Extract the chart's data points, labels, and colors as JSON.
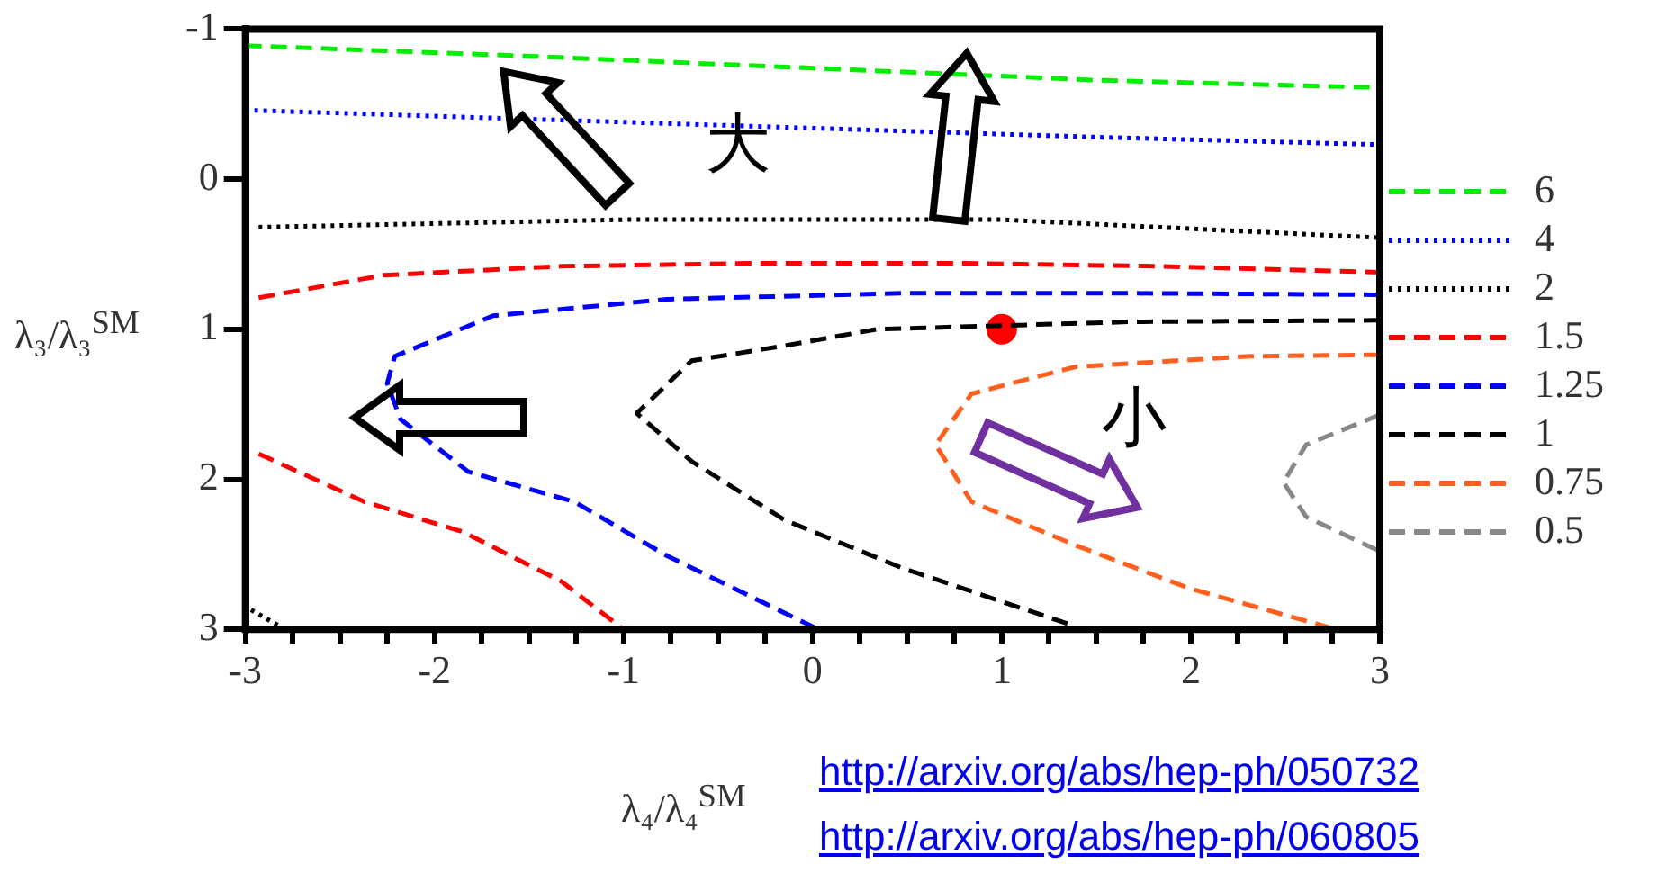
{
  "chart_data": {
    "type": "line",
    "xlabel": "λ₄/λ₄$^{SM}$",
    "ylabel": "λ₃/λ₃$^{SM}$",
    "xlim": [
      -3,
      3
    ],
    "ylim": [
      3,
      -1
    ],
    "xticks": [
      -3,
      {
        "value": -2.75,
        "label": null
      },
      {
        "value": -2.5,
        "label": null
      },
      {
        "value": -2.25,
        "label": null
      },
      -2,
      {
        "value": -1.75,
        "label": null
      },
      {
        "value": -1.5,
        "label": null
      },
      {
        "value": -1.25,
        "label": null
      },
      -1,
      {
        "value": -0.75,
        "label": null
      },
      {
        "value": -0.5,
        "label": null
      },
      {
        "value": -0.25,
        "label": null
      },
      0,
      {
        "value": 0.25,
        "label": null
      },
      {
        "value": 0.5,
        "label": null
      },
      {
        "value": 0.75,
        "label": null
      },
      1,
      {
        "value": 1.25,
        "label": null
      },
      {
        "value": 1.5,
        "label": null
      },
      {
        "value": 1.75,
        "label": null
      },
      2,
      {
        "value": 2.25,
        "label": null
      },
      {
        "value": 2.5,
        "label": null
      },
      {
        "value": 2.75,
        "label": null
      },
      3
    ],
    "yticks": [
      -1,
      0,
      1,
      2,
      3
    ],
    "grid": false,
    "legend": "right",
    "series": [
      {
        "name": "6",
        "color": "#00ee00",
        "line_style": "dashed",
        "x": [
          -3,
          -1.5,
          0,
          1.5,
          3
        ],
        "values": [
          -0.89,
          -0.82,
          -0.74,
          -0.66,
          -0.61
        ]
      },
      {
        "name": "4",
        "color": "#0000ff",
        "line_style": "dotted",
        "x": [
          -3,
          -1.5,
          0,
          1.5,
          3
        ],
        "values": [
          -0.46,
          -0.4,
          -0.34,
          -0.28,
          -0.23
        ]
      },
      {
        "name": "2",
        "color": "#000000",
        "line_style": "dotted",
        "x": [
          -2.93,
          -1,
          1,
          3,
          null,
          -2.97,
          -2.79
        ],
        "values": [
          0.32,
          0.27,
          0.27,
          0.39,
          null,
          2.87,
          3
        ]
      },
      {
        "name": "1.5",
        "color": "#ff0000",
        "line_style": "dashed",
        "x": [
          -2.93,
          -2.27,
          -1.33,
          -0.28,
          0.77,
          1.82,
          3,
          null,
          -2.93,
          -2.37,
          -1.85,
          -1.33,
          -1
        ],
        "values": [
          0.79,
          0.64,
          0.58,
          0.56,
          0.56,
          0.58,
          0.62,
          null,
          1.83,
          2.15,
          2.35,
          2.68,
          3
        ]
      },
      {
        "name": "1.25",
        "color": "#0000ff",
        "line_style": "dashed",
        "x": [
          3,
          1.69,
          0.47,
          -0.77,
          -1.69,
          -2.21,
          -2.25,
          -2.18,
          -1.82,
          -1.26,
          -0.77,
          0.03
        ],
        "values": [
          0.77,
          0.76,
          0.76,
          0.8,
          0.91,
          1.18,
          1.36,
          1.6,
          1.95,
          2.15,
          2.51,
          3
        ]
      },
      {
        "name": "1",
        "color": "#000000",
        "line_style": "dashed",
        "x": [
          3,
          1.69,
          0.34,
          -0.15,
          -0.64,
          -0.93,
          -0.64,
          -0.15,
          0.47,
          1.39
        ],
        "values": [
          0.94,
          0.95,
          1.0,
          1.11,
          1.21,
          1.56,
          1.88,
          2.27,
          2.59,
          2.98
        ]
      },
      {
        "name": "0.75",
        "color": "#ff6020",
        "line_style": "dashed",
        "x": [
          3,
          2.31,
          1.39,
          0.84,
          0.65,
          0.84,
          1.39,
          2.0,
          2.77
        ],
        "values": [
          1.17,
          1.18,
          1.25,
          1.43,
          1.77,
          2.15,
          2.44,
          2.73,
          3
        ]
      },
      {
        "name": "0.5",
        "color": "#888888",
        "line_style": "dashed",
        "x": [
          3,
          2.61,
          2.49,
          2.61,
          3
        ],
        "values": [
          1.57,
          1.77,
          2.02,
          2.25,
          2.48
        ]
      },
      {
        "type": "scatter",
        "color": "#ff0000",
        "marker": "circle",
        "x": [
          1
        ],
        "values": [
          1
        ]
      }
    ],
    "annotations": [
      "大",
      "小",
      "http://arxiv.org/abs/hep-ph/050732",
      "http://arxiv.org/abs/hep-ph/060805"
    ]
  }
}
